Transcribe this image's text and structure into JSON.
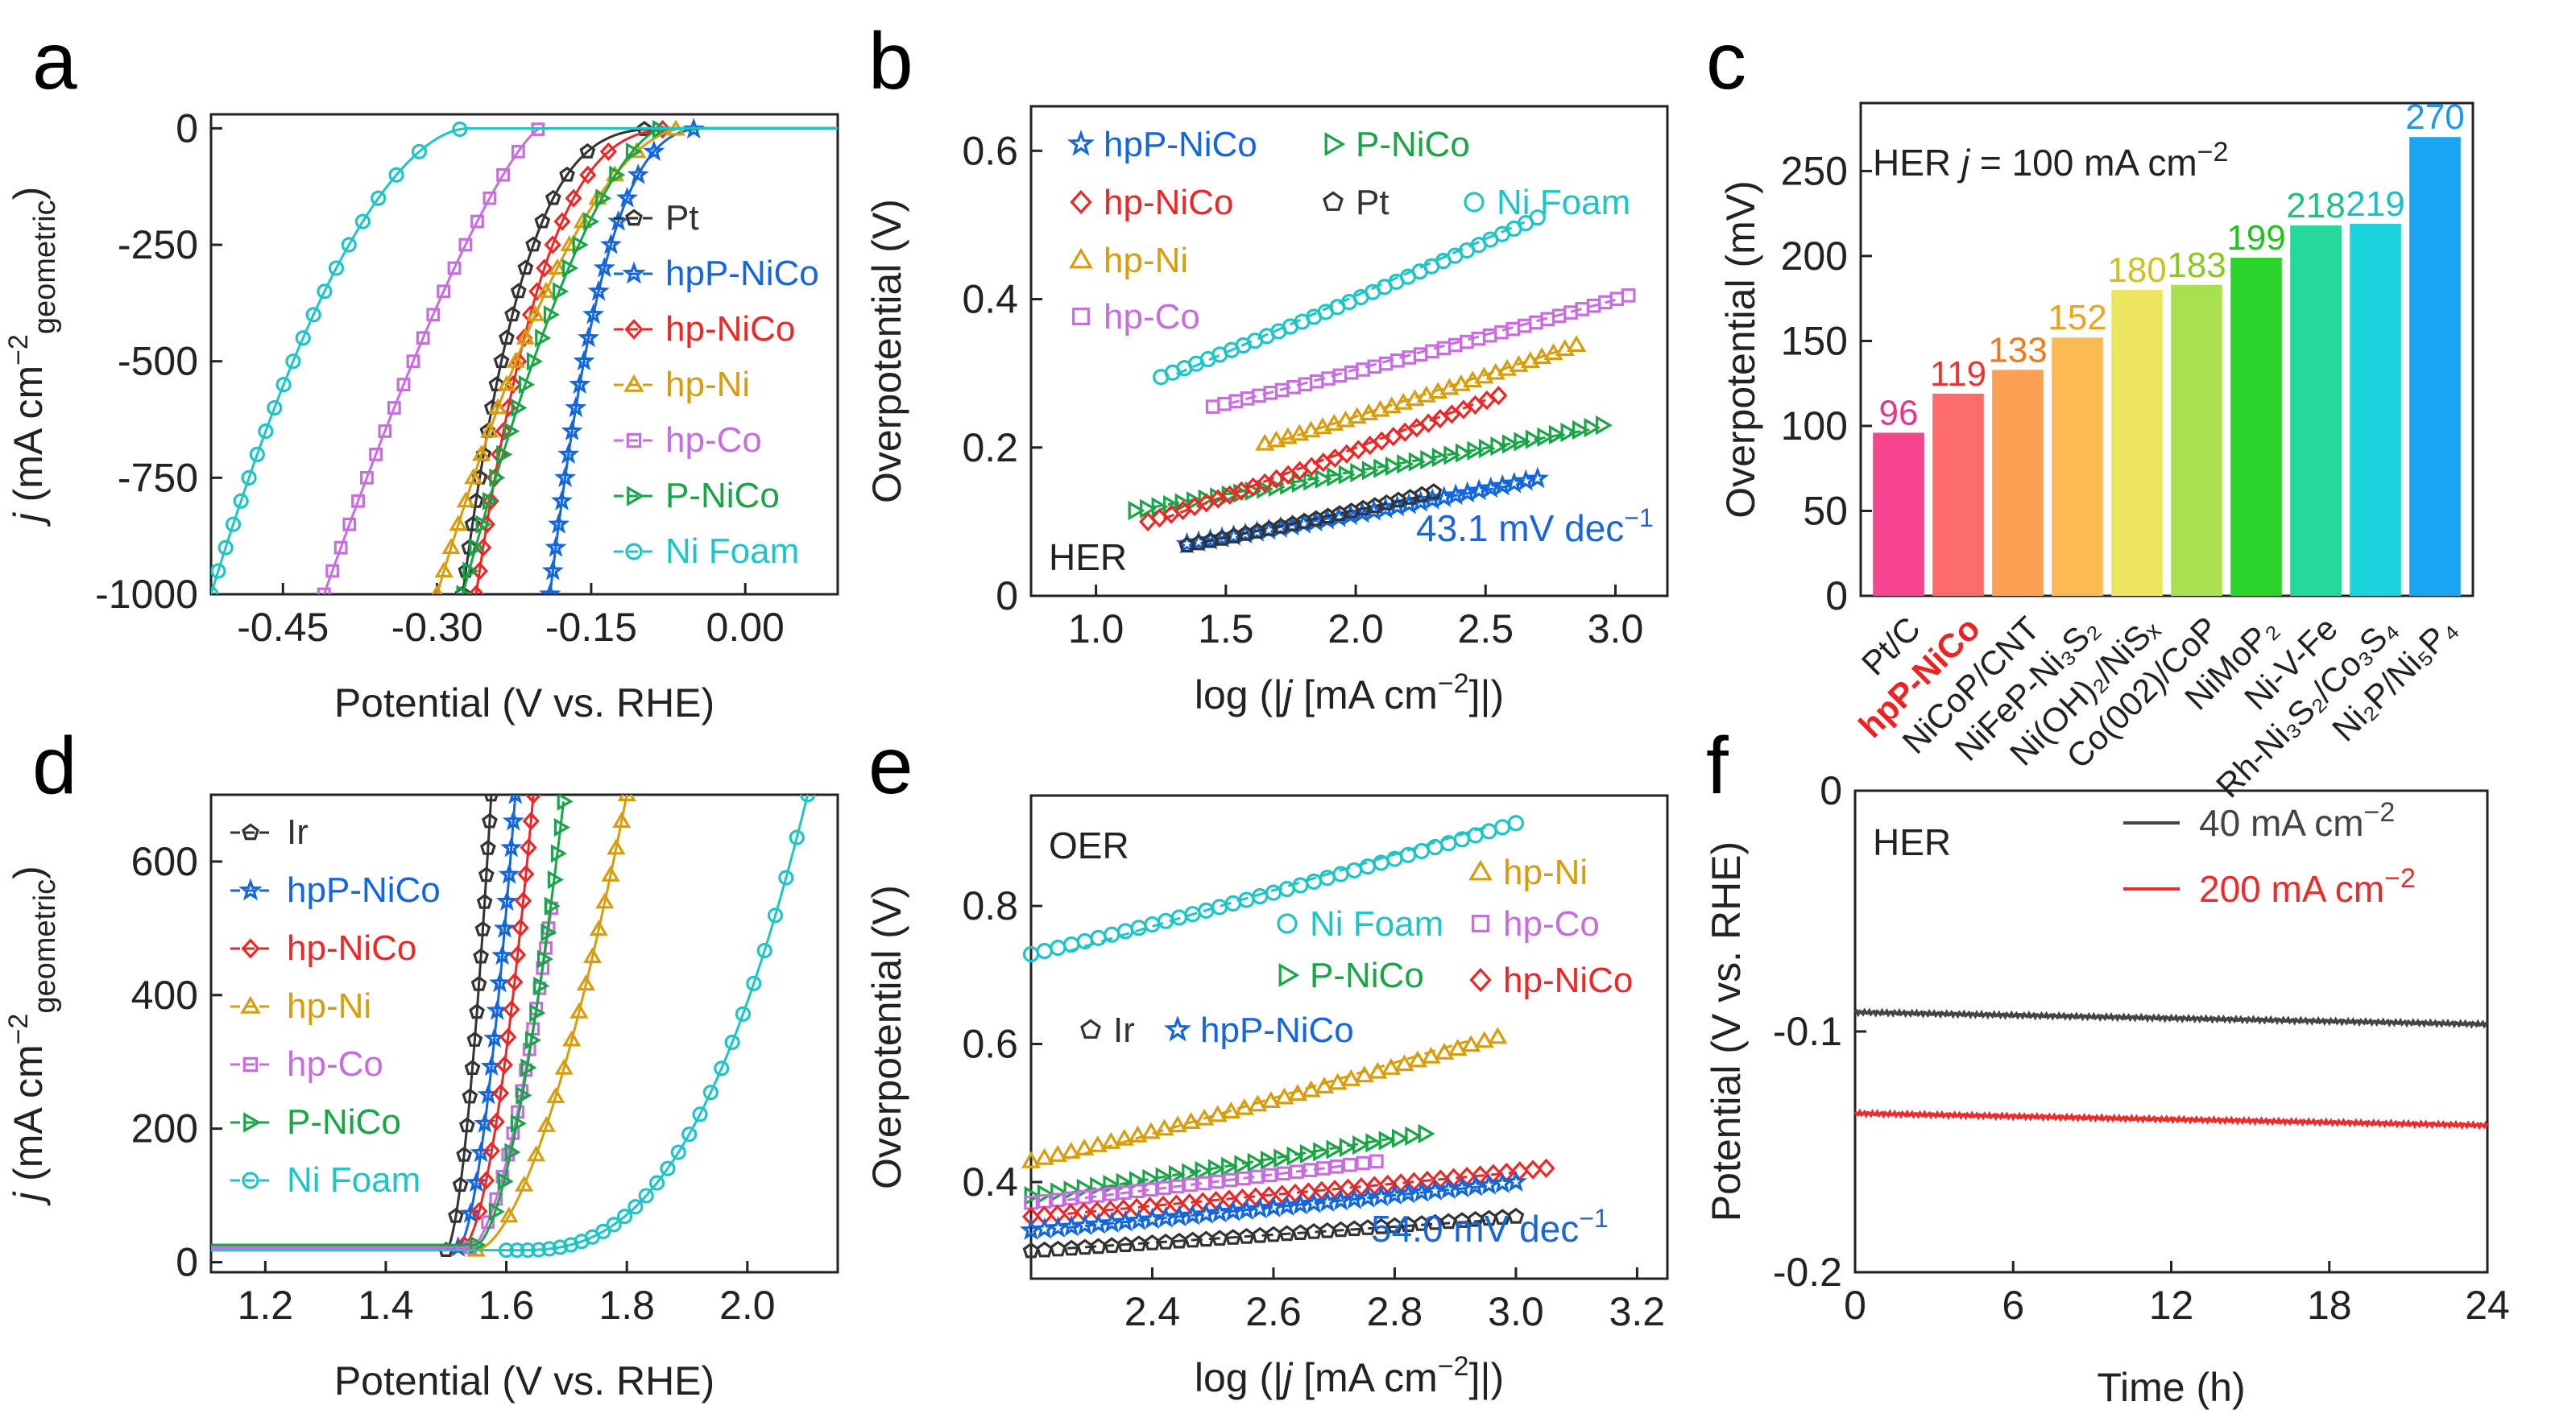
{
  "colors": {
    "Pt": "#333333",
    "Ir": "#333333",
    "hpP-NiCo": "#1266e0",
    "hp-NiCo": "#ee2626",
    "hp-Ni": "#d99d0c",
    "hp-Co": "#c76ddf",
    "P-NiCo": "#17a645",
    "Ni Foam": "#1cc6c6"
  },
  "markers": {
    "Pt": "pentagon",
    "Ir": "pentagon",
    "hpP-NiCo": "star",
    "hp-NiCo": "diamond",
    "hp-Ni": "triangle",
    "hp-Co": "square",
    "P-NiCo": "triangle-right",
    "Ni Foam": "circle"
  },
  "panel_letters": [
    "a",
    "b",
    "c",
    "d",
    "e",
    "f"
  ],
  "chart_data": [
    {
      "panel": "a",
      "type": "line",
      "xlabel": "Potential (V vs. RHE)",
      "ylabel_parts": [
        "j",
        " (mA cm",
        "−2",
        "geometric",
        ")"
      ],
      "xlim": [
        -0.52,
        0.09
      ],
      "ylim": [
        -1000,
        30
      ],
      "xticks": [
        -0.45,
        -0.3,
        -0.15,
        0.0
      ],
      "xticklabels": [
        "-0.45",
        "-0.30",
        "-0.15",
        "0.00"
      ],
      "yticks": [
        0,
        -250,
        -500,
        -750,
        -1000
      ],
      "yticklabels": [
        "0",
        "-250",
        "-500",
        "-750",
        "-1000"
      ],
      "legend_position": "right",
      "series": [
        {
          "name": "Pt",
          "onset": -0.06,
          "end_x": -0.275,
          "k": 3.6
        },
        {
          "name": "hpP-NiCo",
          "onset": -0.03,
          "end_x": -0.19,
          "k": 3.0
        },
        {
          "name": "hp-NiCo",
          "onset": -0.05,
          "end_x": -0.262,
          "k": 3.2
        },
        {
          "name": "hp-Ni",
          "onset": -0.06,
          "end_x": -0.3,
          "k": 1.8
        },
        {
          "name": "hp-Co",
          "onset": -0.2,
          "end_x": -0.41,
          "k": 1.3
        },
        {
          "name": "P-NiCo",
          "onset": -0.08,
          "end_x": -0.275,
          "k": 1.6
        },
        {
          "name": "Ni Foam",
          "onset": -0.27,
          "end_x": -0.52,
          "k": 1.8
        }
      ]
    },
    {
      "panel": "b",
      "type": "line",
      "xlabel": "log (|j [mA cm−2]|)",
      "ylabel": "Overpotential (V)",
      "xlim": [
        0.75,
        3.2
      ],
      "ylim": [
        0,
        0.66
      ],
      "xticks": [
        1.0,
        1.5,
        2.0,
        2.5,
        3.0
      ],
      "xticklabels": [
        "1.0",
        "1.5",
        "2.0",
        "2.5",
        "3.0"
      ],
      "yticks": [
        0,
        0.2,
        0.4,
        0.6
      ],
      "yticklabels": [
        "0",
        "0.2",
        "0.4",
        "0.6"
      ],
      "annotation": "HER",
      "slope_label": "43.1 mV dec−1",
      "series": [
        {
          "name": "hpP-NiCo",
          "x": [
            1.35,
            2.7
          ],
          "y": [
            0.07,
            0.158
          ]
        },
        {
          "name": "Pt",
          "x": [
            1.35,
            2.3
          ],
          "y": [
            0.068,
            0.14
          ]
        },
        {
          "name": "P-NiCo",
          "x": [
            1.15,
            2.95
          ],
          "y": [
            0.115,
            0.23
          ]
        },
        {
          "name": "hp-NiCo",
          "x": [
            1.2,
            2.55
          ],
          "y": [
            0.1,
            0.27
          ]
        },
        {
          "name": "hp-Ni",
          "x": [
            1.65,
            2.85
          ],
          "y": [
            0.205,
            0.338
          ]
        },
        {
          "name": "hp-Co",
          "x": [
            1.45,
            3.05
          ],
          "y": [
            0.255,
            0.405
          ]
        },
        {
          "name": "Ni Foam",
          "x": [
            1.25,
            2.7
          ],
          "y": [
            0.295,
            0.51
          ]
        }
      ]
    },
    {
      "panel": "c",
      "type": "bar",
      "ylabel": "Overpotential (mV)",
      "ylim": [
        0,
        290
      ],
      "yticks": [
        0,
        50,
        100,
        150,
        200,
        250
      ],
      "yticklabels": [
        "0",
        "50",
        "100",
        "150",
        "200",
        "250"
      ],
      "title_parts": [
        "HER",
        "j",
        "= 100 mA cm",
        "−2"
      ],
      "categories": [
        "Pt/C",
        "hpP-NiCo",
        "NiCoP/CNT",
        "NiFeP-Ni₃S₂",
        "Ni(OH)₂/NiSₓ",
        "Co(002)/CoP",
        "NiMoP₂",
        "Ni-V-Fe",
        "Rh-Ni₃S₂/Co₃S₄",
        "Ni₂P/Ni₅P₄"
      ],
      "values": [
        96,
        119,
        133,
        152,
        180,
        183,
        199,
        218,
        219,
        270
      ],
      "bar_colors": [
        "#f54591",
        "#fb6b6b",
        "#fb9f52",
        "#fbbb52",
        "#eee55e",
        "#a8e050",
        "#2ad428",
        "#22d89b",
        "#1ad3dc",
        "#1aa4f3"
      ],
      "label_colors": [
        "#e8348a",
        "#ee3333",
        "#f07a1a",
        "#f0a21a",
        "#ccc21a",
        "#8ac81e",
        "#22c11e",
        "#1cc484",
        "#18c0cb",
        "#1a98ee"
      ],
      "highlight_category": "hpP-NiCo",
      "highlight_color": "#ee2222"
    },
    {
      "panel": "d",
      "type": "line",
      "xlabel": "Potential (V vs. RHE)",
      "ylabel_parts": [
        "j",
        " (mA cm",
        "−2",
        "geometric",
        ")"
      ],
      "xlim": [
        1.11,
        2.15
      ],
      "ylim": [
        -15,
        700
      ],
      "xticks": [
        1.2,
        1.4,
        1.6,
        1.8,
        2.0
      ],
      "xticklabels": [
        "1.2",
        "1.4",
        "1.6",
        "1.8",
        "2.0"
      ],
      "yticks": [
        0,
        200,
        400,
        600
      ],
      "yticklabels": [
        "0",
        "200",
        "400",
        "600"
      ],
      "legend_position": "left",
      "series": [
        {
          "name": "Ir",
          "onset": 1.5,
          "end_x": 1.575,
          "end_y": 700
        },
        {
          "name": "hpP-NiCo",
          "onset": 1.52,
          "end_x": 1.615,
          "end_y": 700
        },
        {
          "name": "hp-NiCo",
          "onset": 1.53,
          "end_x": 1.645,
          "end_y": 700
        },
        {
          "name": "hp-Ni",
          "onset": 1.55,
          "end_x": 1.8,
          "end_y": 700
        },
        {
          "name": "hp-Co",
          "onset": 1.54,
          "end_x": 1.675,
          "end_y": 530
        },
        {
          "name": "P-NiCo",
          "onset": 1.55,
          "end_x": 1.695,
          "end_y": 690
        },
        {
          "name": "Ni Foam",
          "onset": 1.62,
          "end_x": 2.1,
          "end_y": 700
        }
      ]
    },
    {
      "panel": "e",
      "type": "line",
      "xlabel": "log (|j [mA cm−2]|)",
      "ylabel": "Overpotential (V)",
      "xlim": [
        2.2,
        3.25
      ],
      "ylim": [
        0.26,
        0.96
      ],
      "xticks": [
        2.4,
        2.6,
        2.8,
        3.0,
        3.2
      ],
      "xticklabels": [
        "2.4",
        "2.6",
        "2.8",
        "3.0",
        "3.2"
      ],
      "yticks": [
        0.4,
        0.6,
        0.8
      ],
      "yticklabels": [
        "0.4",
        "0.6",
        "0.8"
      ],
      "annotation": "OER",
      "slope_label": "54.0 mV dec−1",
      "series": [
        {
          "name": "Ni Foam",
          "x": [
            2.2,
            3.0
          ],
          "y": [
            0.73,
            0.92
          ]
        },
        {
          "name": "hp-Ni",
          "x": [
            2.2,
            2.97
          ],
          "y": [
            0.43,
            0.61
          ]
        },
        {
          "name": "P-NiCo",
          "x": [
            2.2,
            2.85
          ],
          "y": [
            0.38,
            0.47
          ]
        },
        {
          "name": "hp-Co",
          "x": [
            2.2,
            2.77
          ],
          "y": [
            0.37,
            0.43
          ]
        },
        {
          "name": "hp-NiCo",
          "x": [
            2.2,
            3.05
          ],
          "y": [
            0.35,
            0.42
          ]
        },
        {
          "name": "hpP-NiCo",
          "x": [
            2.2,
            3.0
          ],
          "y": [
            0.33,
            0.4
          ]
        },
        {
          "name": "Ir",
          "x": [
            2.2,
            3.0
          ],
          "y": [
            0.3,
            0.35
          ]
        }
      ]
    },
    {
      "panel": "f",
      "type": "line",
      "xlabel": "Time (h)",
      "ylabel": "Potential (V vs. RHE)",
      "xlim": [
        0,
        24
      ],
      "ylim": [
        -0.2,
        0
      ],
      "xticks": [
        0,
        6,
        12,
        18,
        24
      ],
      "xticklabels": [
        "0",
        "6",
        "12",
        "18",
        "24"
      ],
      "yticks": [
        0,
        -0.1,
        -0.2
      ],
      "yticklabels": [
        "0",
        "-0.1",
        "-0.2"
      ],
      "annotation": "HER",
      "series": [
        {
          "name": "40 mA cm−2",
          "color": "#444444",
          "x": [
            0,
            24
          ],
          "y": [
            -0.092,
            -0.097
          ]
        },
        {
          "name": "200 mA cm−2",
          "color": "#ee2a2a",
          "x": [
            0,
            24
          ],
          "y": [
            -0.134,
            -0.139
          ]
        }
      ]
    }
  ]
}
